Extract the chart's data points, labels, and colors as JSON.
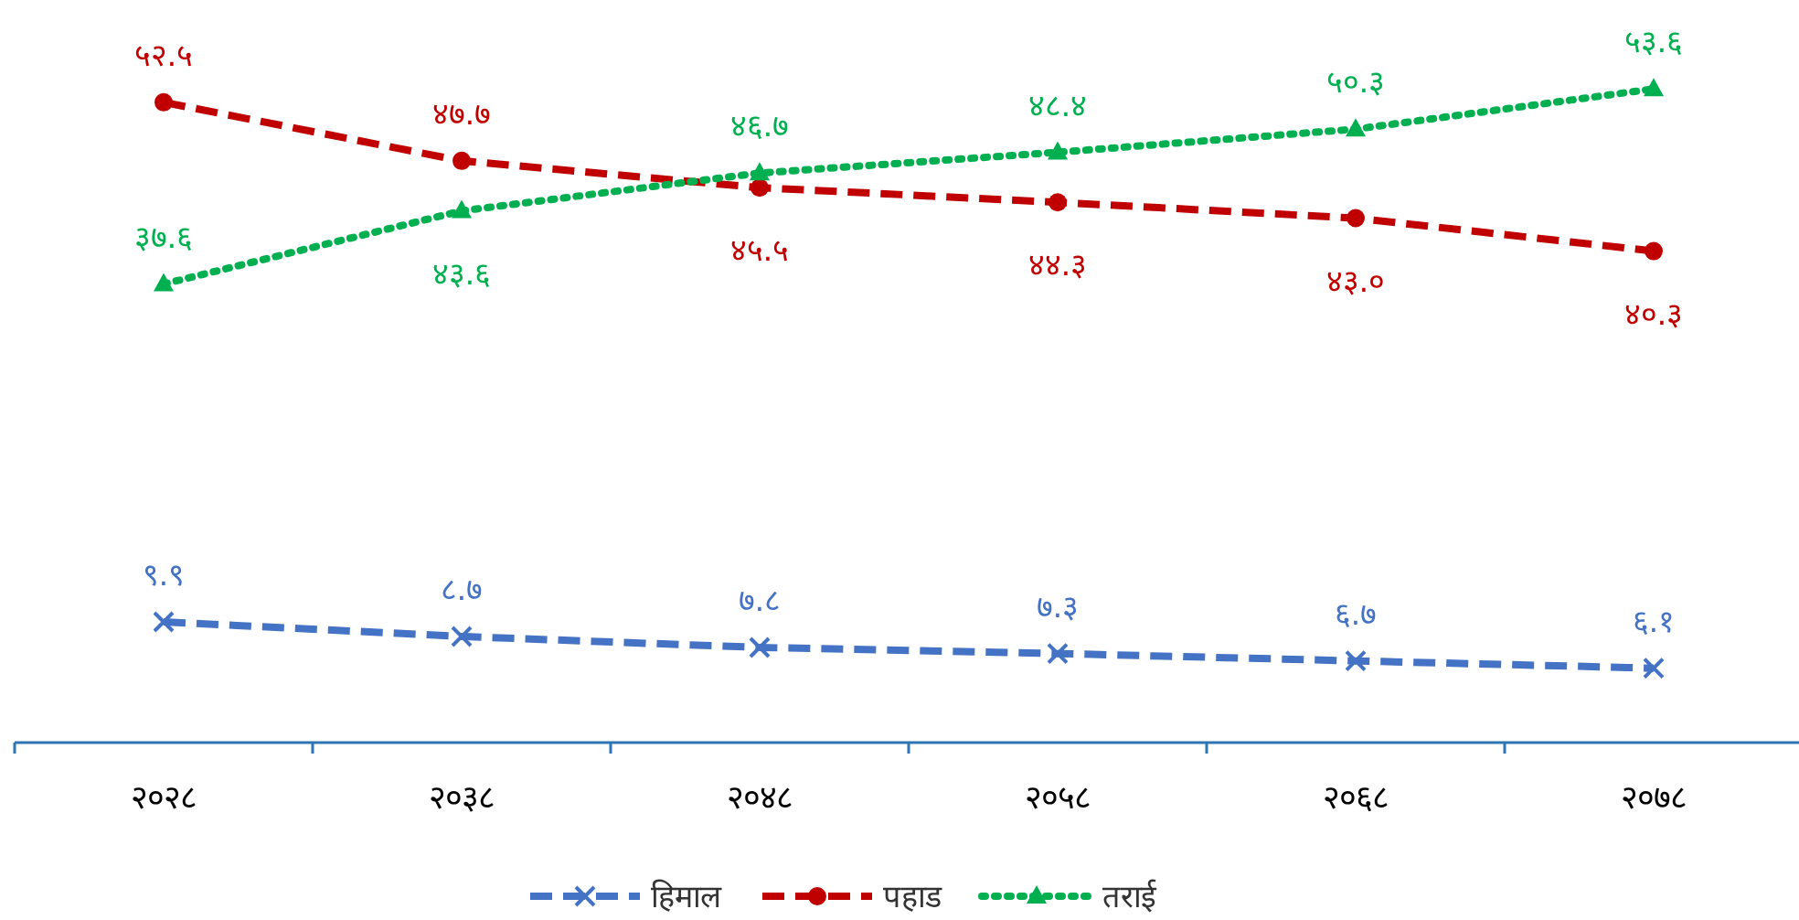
{
  "chart_data": {
    "type": "line",
    "categories": [
      "२०२८",
      "२०३८",
      "२०४८",
      "२०५८",
      "२०६८",
      "२०७८"
    ],
    "series": [
      {
        "name": "हिमाल",
        "color": "#4472c4",
        "marker": "cross",
        "line_style": "dashed",
        "values": [
          9.9,
          8.7,
          7.8,
          7.3,
          6.7,
          6.1
        ],
        "value_labels": [
          "९.९",
          "८.७",
          "७.८",
          "७.३",
          "६.७",
          "६.१"
        ]
      },
      {
        "name": "पहाड",
        "color": "#c00000",
        "marker": "circle",
        "line_style": "dashed",
        "values": [
          52.5,
          47.7,
          45.5,
          44.3,
          43.0,
          40.3
        ],
        "value_labels": [
          "५२.५",
          "४७.७",
          "४५.५",
          "४४.३",
          "४३.०",
          "४०.३"
        ]
      },
      {
        "name": "तराई",
        "color": "#00b050",
        "marker": "triangle",
        "line_style": "dotted",
        "values": [
          37.6,
          43.6,
          46.7,
          48.4,
          50.3,
          53.6
        ],
        "value_labels": [
          "३७.६",
          "४३.६",
          "४६.७",
          "४८.४",
          "५०.३",
          "५३.६"
        ]
      }
    ],
    "legend": "bottom",
    "grid": false
  }
}
